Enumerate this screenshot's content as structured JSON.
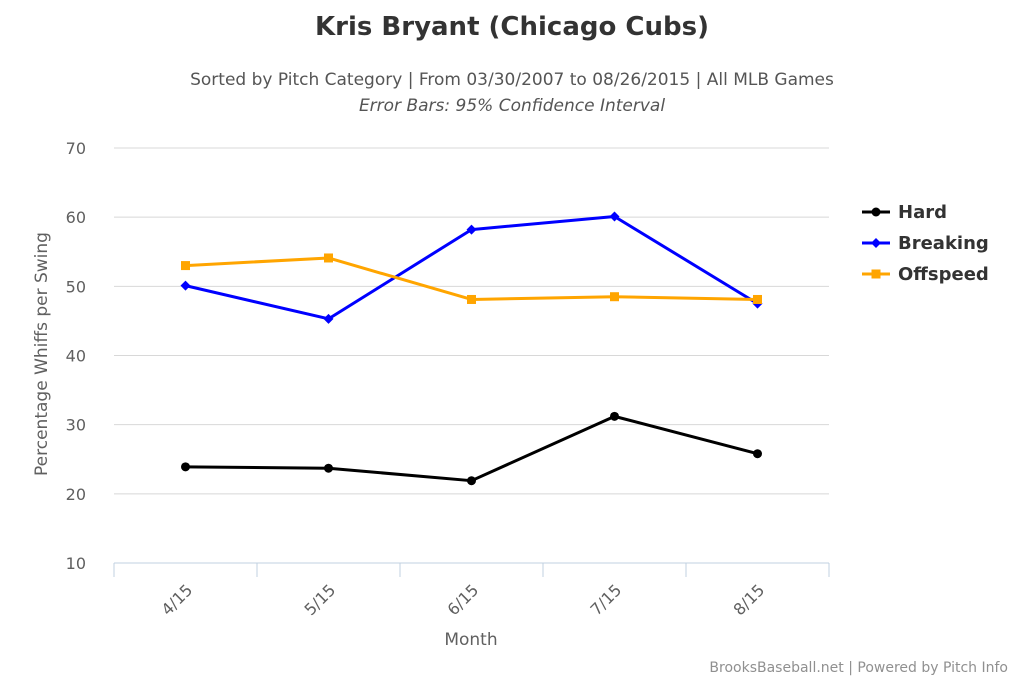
{
  "chart_data": {
    "type": "line",
    "title": "Kris Bryant (Chicago Cubs)",
    "subtitle": "Sorted by Pitch Category | From 03/30/2007 to 08/26/2015 | All MLB Games",
    "subtitle2": "Error Bars: 95% Confidence Interval",
    "xlabel": "Month",
    "ylabel": "Percentage Whiffs per Swing",
    "categories": [
      "4/15",
      "5/15",
      "6/15",
      "7/15",
      "8/15"
    ],
    "ylim": [
      10,
      70
    ],
    "yticks": [
      10,
      20,
      30,
      40,
      50,
      60,
      70
    ],
    "grid": true,
    "legend_position": "right",
    "series": [
      {
        "name": "Hard",
        "color": "#000000",
        "marker": "circle",
        "values": [
          23.9,
          23.7,
          21.9,
          31.2,
          25.8
        ]
      },
      {
        "name": "Breaking",
        "color": "#0000ff",
        "marker": "diamond",
        "values": [
          50.1,
          45.3,
          58.2,
          60.1,
          47.5
        ]
      },
      {
        "name": "Offspeed",
        "color": "#ffa500",
        "marker": "square",
        "values": [
          53.0,
          54.1,
          48.1,
          48.5,
          48.1
        ]
      }
    ]
  },
  "credits": "BrooksBaseball.net | Powered by Pitch Info"
}
